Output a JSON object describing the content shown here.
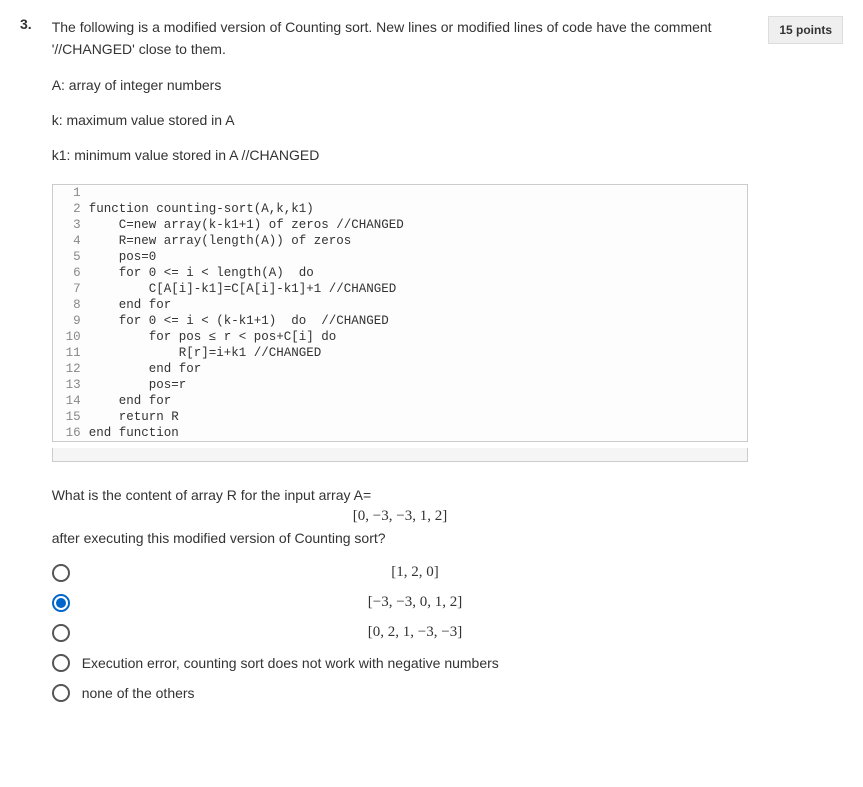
{
  "question": {
    "number": "3.",
    "points_label": "15 points",
    "intro": "The following is a modified version of Counting sort. New lines or modified lines of code have the comment '//CHANGED' close to them.",
    "params": [
      "A: array of integer numbers",
      "k: maximum value stored in A",
      "k1: minimum value stored in A //CHANGED"
    ]
  },
  "code": {
    "lines": [
      {
        "n": "1",
        "c": ""
      },
      {
        "n": "2",
        "c": "function counting-sort(A,k,k1)"
      },
      {
        "n": "3",
        "c": "    C=new array(k-k1+1) of zeros //CHANGED"
      },
      {
        "n": "4",
        "c": "    R=new array(length(A)) of zeros"
      },
      {
        "n": "5",
        "c": "    pos=0"
      },
      {
        "n": "6",
        "c": "    for 0 <= i < length(A)  do"
      },
      {
        "n": "7",
        "c": "        C[A[i]-k1]=C[A[i]-k1]+1 //CHANGED"
      },
      {
        "n": "8",
        "c": "    end for"
      },
      {
        "n": "9",
        "c": "    for 0 <= i < (k-k1+1)  do  //CHANGED"
      },
      {
        "n": "10",
        "c": "        for pos ≤ r < pos+C[i] do"
      },
      {
        "n": "11",
        "c": "            R[r]=i+k1 //CHANGED"
      },
      {
        "n": "12",
        "c": "        end for"
      },
      {
        "n": "13",
        "c": "        pos=r"
      },
      {
        "n": "14",
        "c": "    end for"
      },
      {
        "n": "15",
        "c": "    return R"
      },
      {
        "n": "16",
        "c": "end function"
      }
    ]
  },
  "prompt": {
    "line1": "What is the content of array R for the input array A=",
    "array_eq": "[0, −3, −3, 1, 2]",
    "line2": "after executing this modified version of Counting sort?"
  },
  "options": [
    {
      "label": "[1, 2, 0]",
      "selected": false,
      "math": true
    },
    {
      "label": "[−3, −3, 0, 1, 2]",
      "selected": true,
      "math": true
    },
    {
      "label": "[0, 2, 1, −3, −3]",
      "selected": false,
      "math": true
    },
    {
      "label": "Execution error, counting sort does not work with negative numbers",
      "selected": false,
      "math": false
    },
    {
      "label": "none of the others",
      "selected": false,
      "math": false
    }
  ]
}
